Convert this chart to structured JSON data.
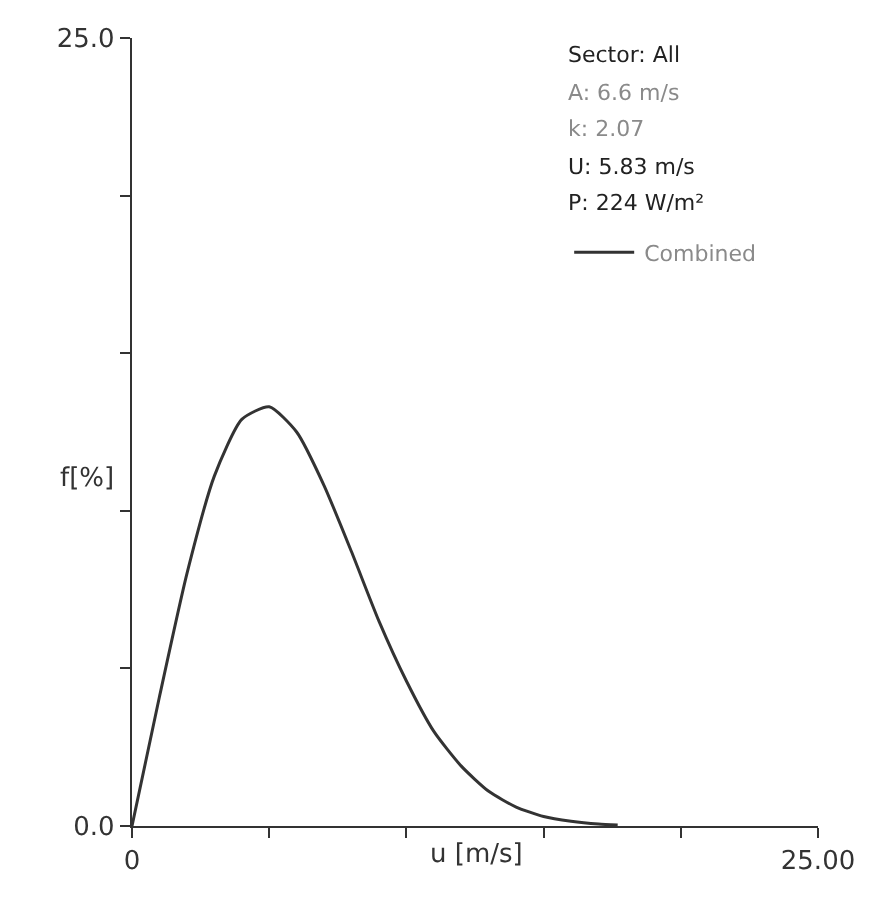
{
  "chart_data": {
    "type": "line",
    "xlabel": "u [m/s]",
    "ylabel": "f[%]",
    "annotations": [
      "Sector: All",
      "A: 6.6 m/s",
      "k: 2.07",
      "U: 5.83 m/s",
      "P: 224 W/m²"
    ],
    "x": [
      0,
      1,
      2,
      3,
      4,
      5,
      6,
      7,
      8,
      9,
      10,
      11,
      12,
      13,
      14,
      15,
      16,
      17,
      17.7
    ],
    "series": [
      {
        "name": "Combined",
        "color": "#333333",
        "values": [
          0,
          4.1,
          8.0,
          11.1,
          12.9,
          13.3,
          12.5,
          10.8,
          8.7,
          6.5,
          4.6,
          3.0,
          1.9,
          1.1,
          0.6,
          0.3,
          0.15,
          0.06,
          0.03
        ]
      }
    ],
    "xlim": [
      0,
      25
    ],
    "xticks": [
      0,
      {
        "value": 5,
        "label": null
      },
      {
        "value": 10,
        "label": null
      },
      {
        "value": 15,
        "label": null
      },
      {
        "value": 20,
        "label": null
      },
      {
        "value": 25,
        "label": "25.00"
      }
    ],
    "ylim": [
      0,
      25
    ],
    "yticks": [
      {
        "value": 0,
        "label": "0.0"
      },
      {
        "value": 5,
        "label": null
      },
      {
        "value": 10,
        "label": null
      },
      {
        "value": 15,
        "label": null
      },
      {
        "value": 20,
        "label": null
      },
      {
        "value": 25,
        "label": "25.0"
      }
    ],
    "legend": "top right",
    "marker": "none",
    "line_style": "solid"
  }
}
